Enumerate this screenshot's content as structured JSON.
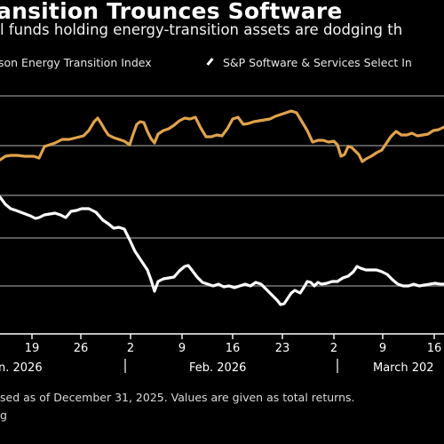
{
  "title": "ansition Trounces Software",
  "subtitle": "l funds holding energy-transition assets are dodging th",
  "legend": [
    {
      "label": "son Energy Transition Index",
      "color": "#e0a24a"
    },
    {
      "label": "S&P Software & Services Select In",
      "color": "#ffffff"
    }
  ],
  "chart_data": {
    "type": "line",
    "x_ticks": [
      "19",
      "26",
      "2",
      "9",
      "16",
      "23",
      "2",
      "9",
      "16"
    ],
    "month_labels": [
      "n. 2026",
      "Feb. 2026",
      "March 202"
    ],
    "series": [
      {
        "name": "son Energy Transition Index",
        "color": "#e0a24a",
        "values": [
          [
            0,
            180
          ],
          [
            6,
            176
          ],
          [
            12,
            175
          ],
          [
            20,
            175
          ],
          [
            28,
            176
          ],
          [
            38,
            176
          ],
          [
            44,
            178
          ],
          [
            50,
            165
          ],
          [
            56,
            163
          ],
          [
            62,
            161
          ],
          [
            70,
            157
          ],
          [
            78,
            157
          ],
          [
            86,
            155
          ],
          [
            94,
            153
          ],
          [
            100,
            147
          ],
          [
            106,
            137
          ],
          [
            110,
            133
          ],
          [
            114,
            139
          ],
          [
            118,
            146
          ],
          [
            122,
            152
          ],
          [
            128,
            155
          ],
          [
            134,
            157
          ],
          [
            140,
            159
          ],
          [
            146,
            163
          ],
          [
            150,
            151
          ],
          [
            154,
            140
          ],
          [
            158,
            137
          ],
          [
            162,
            138
          ],
          [
            166,
            148
          ],
          [
            170,
            156
          ],
          [
            174,
            161
          ],
          [
            178,
            151
          ],
          [
            184,
            147
          ],
          [
            190,
            145
          ],
          [
            196,
            141
          ],
          [
            202,
            136
          ],
          [
            208,
            133
          ],
          [
            214,
            134
          ],
          [
            220,
            132
          ],
          [
            226,
            144
          ],
          [
            232,
            154
          ],
          [
            238,
            154
          ],
          [
            244,
            152
          ],
          [
            250,
            153
          ],
          [
            256,
            145
          ],
          [
            262,
            134
          ],
          [
            268,
            132
          ],
          [
            274,
            140
          ],
          [
            280,
            139
          ],
          [
            286,
            137
          ],
          [
            292,
            136
          ],
          [
            298,
            135
          ],
          [
            304,
            134
          ],
          [
            310,
            131
          ],
          [
            316,
            129
          ],
          [
            322,
            127
          ],
          [
            328,
            125
          ],
          [
            334,
            127
          ],
          [
            340,
            137
          ],
          [
            346,
            147
          ],
          [
            352,
            160
          ],
          [
            358,
            158
          ],
          [
            364,
            158
          ],
          [
            370,
            160
          ],
          [
            376,
            159
          ],
          [
            380,
            163
          ],
          [
            384,
            176
          ],
          [
            388,
            174
          ],
          [
            392,
            165
          ],
          [
            396,
            166
          ],
          [
            400,
            170
          ],
          [
            404,
            174
          ],
          [
            408,
            182
          ],
          [
            412,
            179
          ],
          [
            418,
            176
          ],
          [
            424,
            172
          ],
          [
            430,
            169
          ],
          [
            434,
            163
          ],
          [
            440,
            154
          ],
          [
            446,
            148
          ],
          [
            452,
            152
          ],
          [
            458,
            152
          ],
          [
            464,
            150
          ],
          [
            470,
            153
          ],
          [
            476,
            152
          ],
          [
            482,
            151
          ],
          [
            488,
            147
          ],
          [
            494,
            146
          ],
          [
            500,
            143
          ]
        ]
      },
      {
        "name": "S&P Software & Services Select In",
        "color": "#ffffff",
        "values": [
          [
            0,
            222
          ],
          [
            6,
            230
          ],
          [
            12,
            235
          ],
          [
            18,
            237
          ],
          [
            26,
            240
          ],
          [
            34,
            243
          ],
          [
            40,
            246
          ],
          [
            44,
            245
          ],
          [
            50,
            242
          ],
          [
            56,
            241
          ],
          [
            62,
            240
          ],
          [
            68,
            242
          ],
          [
            74,
            245
          ],
          [
            80,
            238
          ],
          [
            86,
            237
          ],
          [
            92,
            235
          ],
          [
            100,
            235
          ],
          [
            108,
            239
          ],
          [
            116,
            248
          ],
          [
            122,
            252
          ],
          [
            128,
            257
          ],
          [
            134,
            256
          ],
          [
            140,
            258
          ],
          [
            146,
            270
          ],
          [
            152,
            283
          ],
          [
            158,
            292
          ],
          [
            162,
            298
          ],
          [
            166,
            304
          ],
          [
            170,
            315
          ],
          [
            174,
            328
          ],
          [
            178,
            317
          ],
          [
            184,
            314
          ],
          [
            190,
            313
          ],
          [
            196,
            312
          ],
          [
            202,
            305
          ],
          [
            208,
            300
          ],
          [
            212,
            299
          ],
          [
            216,
            304
          ],
          [
            222,
            312
          ],
          [
            228,
            318
          ],
          [
            234,
            320
          ],
          [
            240,
            322
          ],
          [
            246,
            320
          ],
          [
            252,
            323
          ],
          [
            258,
            322
          ],
          [
            264,
            324
          ],
          [
            270,
            322
          ],
          [
            276,
            320
          ],
          [
            282,
            322
          ],
          [
            288,
            318
          ],
          [
            294,
            320
          ],
          [
            300,
            326
          ],
          [
            306,
            332
          ],
          [
            312,
            338
          ],
          [
            316,
            343
          ],
          [
            320,
            342
          ],
          [
            324,
            336
          ],
          [
            328,
            330
          ],
          [
            332,
            327
          ],
          [
            338,
            330
          ],
          [
            342,
            324
          ],
          [
            346,
            317
          ],
          [
            350,
            318
          ],
          [
            354,
            322
          ],
          [
            358,
            318
          ],
          [
            362,
            320
          ],
          [
            368,
            319
          ],
          [
            374,
            317
          ],
          [
            380,
            317
          ],
          [
            386,
            313
          ],
          [
            392,
            311
          ],
          [
            398,
            306
          ],
          [
            402,
            300
          ],
          [
            406,
            302
          ],
          [
            412,
            304
          ],
          [
            418,
            304
          ],
          [
            424,
            304
          ],
          [
            430,
            306
          ],
          [
            436,
            309
          ],
          [
            442,
            315
          ],
          [
            448,
            320
          ],
          [
            454,
            322
          ],
          [
            460,
            322
          ],
          [
            466,
            320
          ],
          [
            472,
            322
          ],
          [
            478,
            321
          ],
          [
            484,
            320
          ],
          [
            490,
            319
          ],
          [
            496,
            320
          ],
          [
            500,
            320
          ]
        ]
      }
    ]
  },
  "footnote": "sed as of December 31, 2025. Values are given as total returns.",
  "source": "g"
}
